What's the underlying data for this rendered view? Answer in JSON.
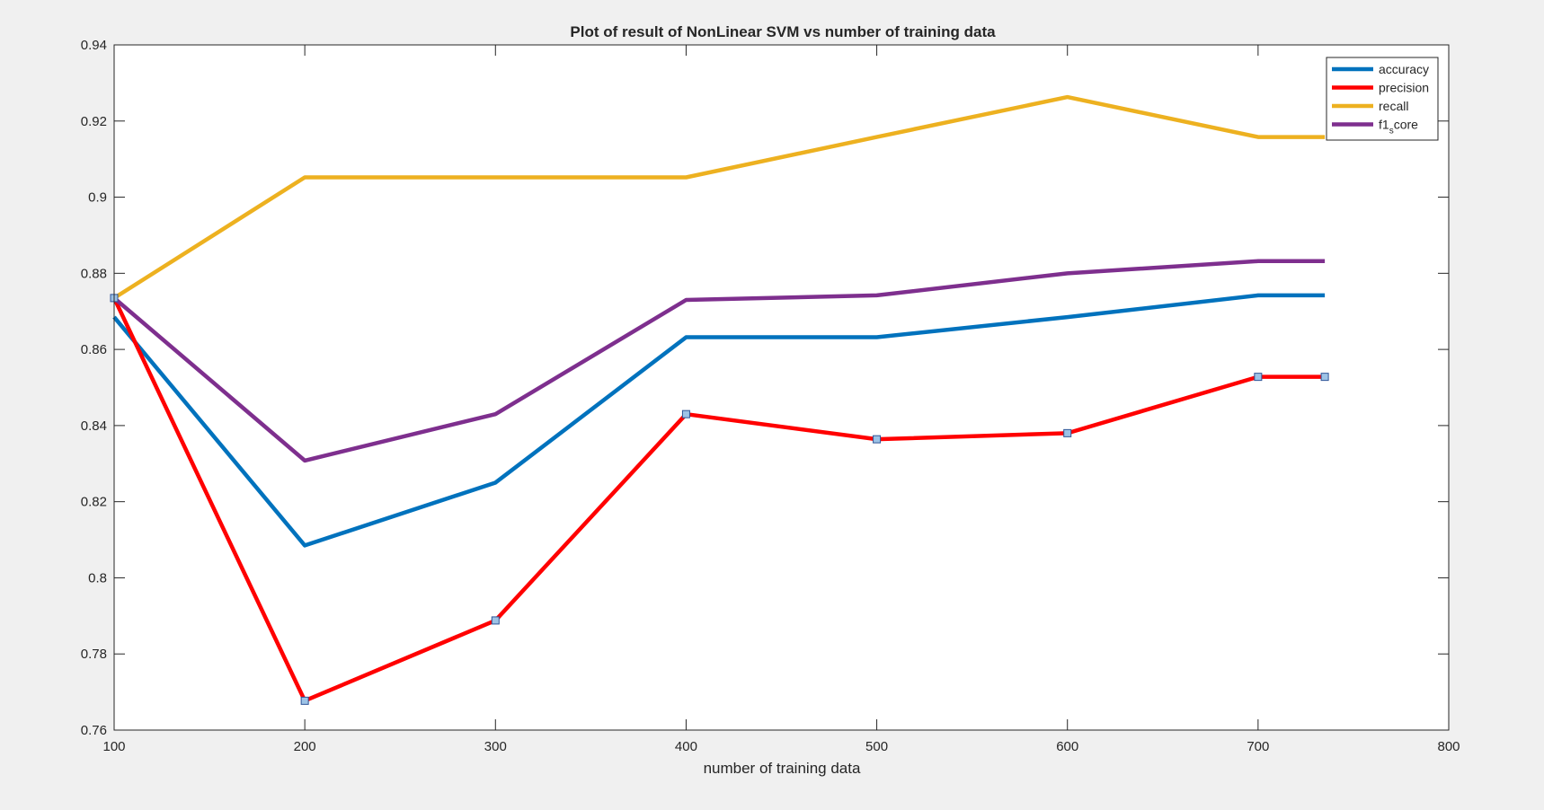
{
  "chart_data": {
    "type": "line",
    "title": "Plot of result of NonLinear SVM vs number of training data",
    "xlabel": "number of training data",
    "ylabel": "",
    "xlim": [
      100,
      800
    ],
    "ylim": [
      0.76,
      0.94
    ],
    "xticks": [
      "100",
      "200",
      "300",
      "400",
      "500",
      "600",
      "700",
      "800"
    ],
    "yticks": [
      "0.76",
      "0.78",
      "0.8",
      "0.82",
      "0.84",
      "0.86",
      "0.88",
      "0.9",
      "0.92",
      "0.94"
    ],
    "grid": false,
    "legend_position": "top-right",
    "x": [
      100,
      200,
      300,
      400,
      500,
      600,
      700,
      735
    ],
    "series": [
      {
        "name": "accuracy",
        "color": "#0072bd",
        "values": [
          0.8685,
          0.8085,
          0.825,
          0.8632,
          0.8632,
          0.8685,
          0.8742,
          0.8742
        ],
        "markers": false
      },
      {
        "name": "precision",
        "color": "#ff0000",
        "values": [
          0.8735,
          0.7677,
          0.7888,
          0.843,
          0.8364,
          0.838,
          0.8528,
          0.8528
        ],
        "markers": true
      },
      {
        "name": "recall",
        "color": "#edb120",
        "values": [
          0.8735,
          0.9052,
          0.9052,
          0.9052,
          0.9158,
          0.9263,
          0.9158,
          0.9158
        ],
        "markers": false
      },
      {
        "name": "f1_score",
        "color": "#7e2f8e",
        "values": [
          0.8735,
          0.8308,
          0.843,
          0.873,
          0.8742,
          0.88,
          0.8832,
          0.8832
        ],
        "markers": false
      }
    ],
    "legend": [
      {
        "base": "accuracy",
        "sub": "",
        "tail": ""
      },
      {
        "base": "precision",
        "sub": "",
        "tail": ""
      },
      {
        "base": "recall",
        "sub": "",
        "tail": ""
      },
      {
        "base": "f1",
        "sub": "s",
        "tail": "core"
      }
    ]
  }
}
